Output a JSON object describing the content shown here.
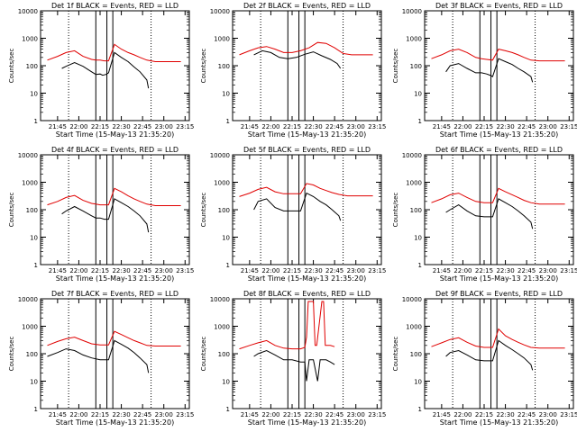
{
  "colors": {
    "events": "#000000",
    "lld": "#e00000",
    "frame": "#000000",
    "background": "#ffffff"
  },
  "chart_data": [
    {
      "type": "line",
      "detector": "1f",
      "title": "Det 1f BLACK = Events, RED = LLD",
      "xlabel": "Start Time (15-May-13 21:35:20)",
      "ylabel": "Counts/sec",
      "xticks": [
        "21:45",
        "22:00",
        "22:15",
        "22:30",
        "22:45",
        "23:00",
        "23:15"
      ],
      "yticks": [
        "1",
        "10",
        "100",
        "1000",
        "10000"
      ],
      "yscale": "log",
      "ylim": [
        1,
        10000
      ],
      "series": [
        {
          "color": "#000000",
          "x": [
            21.8,
            21.85,
            21.95,
            22.05,
            22.15,
            22.2,
            22.25,
            22.28,
            22.32,
            22.35,
            22.42,
            22.5,
            22.58,
            22.65,
            22.72,
            22.8,
            22.82
          ],
          "y": [
            80,
            95,
            130,
            95,
            60,
            48,
            50,
            45,
            48,
            55,
            300,
            200,
            140,
            90,
            60,
            30,
            15
          ]
        },
        {
          "color": "#e00000",
          "x": [
            21.63,
            21.75,
            21.85,
            21.95,
            22.05,
            22.15,
            22.2,
            22.25,
            22.3,
            22.35,
            22.42,
            22.5,
            22.58,
            22.65,
            22.72,
            22.8,
            22.9,
            23.0,
            23.1,
            23.2
          ],
          "y": [
            160,
            220,
            300,
            350,
            220,
            170,
            160,
            160,
            150,
            150,
            600,
            400,
            300,
            250,
            200,
            160,
            140,
            140,
            140,
            140
          ]
        }
      ]
    },
    {
      "type": "line",
      "detector": "2f",
      "title": "Det 2f BLACK = Events, RED = LLD",
      "xlabel": "Start Time (15-May-13 21:35:20)",
      "ylabel": "Counts/sec",
      "xticks": [
        "21:45",
        "22:00",
        "22:15",
        "22:30",
        "22:45",
        "23:00",
        "23:15"
      ],
      "yticks": [
        "1",
        "10",
        "100",
        "1000",
        "10000"
      ],
      "yscale": "log",
      "ylim": [
        1,
        10000
      ],
      "series": [
        {
          "color": "#000000",
          "x": [
            21.8,
            21.9,
            22.0,
            22.1,
            22.2,
            22.3,
            22.4,
            22.5,
            22.6,
            22.7,
            22.78,
            22.82
          ],
          "y": [
            250,
            350,
            300,
            200,
            180,
            200,
            260,
            320,
            230,
            170,
            120,
            80
          ]
        },
        {
          "color": "#e00000",
          "x": [
            21.63,
            21.75,
            21.85,
            21.95,
            22.05,
            22.15,
            22.25,
            22.35,
            22.45,
            22.55,
            22.65,
            22.75,
            22.85,
            22.95,
            23.05,
            23.2
          ],
          "y": [
            250,
            350,
            450,
            500,
            400,
            300,
            300,
            350,
            450,
            700,
            650,
            450,
            280,
            250,
            250,
            250
          ]
        }
      ]
    },
    {
      "type": "line",
      "detector": "3f",
      "title": "Det 3f BLACK = Events, RED = LLD",
      "xlabel": "Start Time (15-May-13 21:35:20)",
      "ylabel": "Counts/sec",
      "xticks": [
        "21:45",
        "22:00",
        "22:15",
        "22:30",
        "22:45",
        "23:00",
        "23:15"
      ],
      "yticks": [
        "1",
        "10",
        "100",
        "1000",
        "10000"
      ],
      "yscale": "log",
      "ylim": [
        1,
        10000
      ],
      "series": [
        {
          "color": "#000000",
          "x": [
            21.8,
            21.85,
            21.95,
            22.05,
            22.15,
            22.22,
            22.28,
            22.32,
            22.35,
            22.42,
            22.5,
            22.58,
            22.65,
            22.72,
            22.8,
            22.82
          ],
          "y": [
            60,
            100,
            120,
            80,
            55,
            55,
            50,
            45,
            40,
            180,
            140,
            110,
            80,
            60,
            40,
            25
          ]
        },
        {
          "color": "#e00000",
          "x": [
            21.63,
            21.75,
            21.85,
            21.95,
            22.05,
            22.15,
            22.22,
            22.28,
            22.35,
            22.42,
            22.5,
            22.58,
            22.65,
            22.72,
            22.8,
            22.9,
            23.0,
            23.1,
            23.2
          ],
          "y": [
            180,
            250,
            350,
            400,
            300,
            200,
            180,
            170,
            160,
            400,
            350,
            300,
            250,
            200,
            160,
            150,
            150,
            150,
            150
          ]
        }
      ]
    },
    {
      "type": "line",
      "detector": "4f",
      "title": "Det 4f BLACK = Events, RED = LLD",
      "xlabel": "Start Time (15-May-13 21:35:20)",
      "ylabel": "Counts/sec",
      "xticks": [
        "21:45",
        "22:00",
        "22:15",
        "22:30",
        "22:45",
        "23:00",
        "23:15"
      ],
      "yticks": [
        "1",
        "10",
        "100",
        "1000",
        "10000"
      ],
      "yscale": "log",
      "ylim": [
        1,
        10000
      ],
      "series": [
        {
          "color": "#000000",
          "x": [
            21.8,
            21.85,
            21.95,
            22.05,
            22.15,
            22.2,
            22.25,
            22.3,
            22.35,
            22.42,
            22.5,
            22.58,
            22.65,
            22.72,
            22.8,
            22.82
          ],
          "y": [
            70,
            90,
            130,
            90,
            60,
            50,
            50,
            45,
            45,
            250,
            180,
            130,
            90,
            60,
            30,
            15
          ]
        },
        {
          "color": "#e00000",
          "x": [
            21.63,
            21.75,
            21.85,
            21.95,
            22.05,
            22.15,
            22.2,
            22.25,
            22.3,
            22.35,
            22.42,
            22.5,
            22.58,
            22.65,
            22.72,
            22.8,
            22.9,
            23.0,
            23.1,
            23.2
          ],
          "y": [
            150,
            200,
            280,
            330,
            220,
            170,
            160,
            150,
            150,
            150,
            600,
            450,
            320,
            250,
            200,
            160,
            140,
            140,
            140,
            140
          ]
        }
      ]
    },
    {
      "type": "line",
      "detector": "5f",
      "title": "Det 5f BLACK = Events, RED = LLD",
      "xlabel": "Start Time (15-May-13 21:35:20)",
      "ylabel": "Counts/sec",
      "xticks": [
        "21:45",
        "22:00",
        "22:15",
        "22:30",
        "22:45",
        "23:00",
        "23:15"
      ],
      "yticks": [
        "1",
        "10",
        "100",
        "1000",
        "10000"
      ],
      "yscale": "log",
      "ylim": [
        1,
        10000
      ],
      "series": [
        {
          "color": "#000000",
          "x": [
            21.8,
            21.85,
            21.95,
            22.05,
            22.15,
            22.25,
            22.35,
            22.42,
            22.5,
            22.58,
            22.65,
            22.72,
            22.8,
            22.82
          ],
          "y": [
            100,
            200,
            250,
            120,
            90,
            90,
            90,
            400,
            300,
            200,
            150,
            100,
            60,
            40
          ]
        },
        {
          "color": "#e00000",
          "x": [
            21.63,
            21.75,
            21.85,
            21.95,
            22.05,
            22.15,
            22.25,
            22.35,
            22.42,
            22.5,
            22.58,
            22.65,
            22.72,
            22.8,
            22.9,
            23.0,
            23.1,
            23.2
          ],
          "y": [
            300,
            400,
            550,
            650,
            450,
            380,
            380,
            380,
            900,
            800,
            600,
            500,
            420,
            360,
            320,
            320,
            320,
            320
          ]
        }
      ]
    },
    {
      "type": "line",
      "detector": "6f",
      "title": "Det 6f BLACK = Events, RED = LLD",
      "xlabel": "Start Time (15-May-13 21:35:20)",
      "ylabel": "Counts/sec",
      "xticks": [
        "21:45",
        "22:00",
        "22:15",
        "22:30",
        "22:45",
        "23:00",
        "23:15"
      ],
      "yticks": [
        "1",
        "10",
        "100",
        "1000",
        "10000"
      ],
      "yscale": "log",
      "ylim": [
        1,
        10000
      ],
      "series": [
        {
          "color": "#000000",
          "x": [
            21.8,
            21.85,
            21.95,
            22.05,
            22.15,
            22.25,
            22.35,
            22.42,
            22.5,
            22.58,
            22.65,
            22.72,
            22.8,
            22.82
          ],
          "y": [
            80,
            100,
            150,
            90,
            60,
            55,
            55,
            250,
            180,
            130,
            90,
            60,
            35,
            20
          ]
        },
        {
          "color": "#e00000",
          "x": [
            21.63,
            21.75,
            21.85,
            21.95,
            22.05,
            22.15,
            22.25,
            22.35,
            22.42,
            22.5,
            22.58,
            22.65,
            22.72,
            22.8,
            22.9,
            23.0,
            23.1,
            23.2
          ],
          "y": [
            180,
            250,
            350,
            400,
            280,
            200,
            180,
            180,
            600,
            450,
            350,
            280,
            220,
            180,
            160,
            160,
            160,
            160
          ]
        }
      ]
    },
    {
      "type": "line",
      "detector": "7f",
      "title": "Det 7f BLACK = Events, RED = LLD",
      "xlabel": "Start Time (15-May-13 21:35:20)",
      "ylabel": "Counts/sec",
      "xticks": [
        "21:45",
        "22:00",
        "22:15",
        "22:30",
        "22:45",
        "23:00",
        "23:15"
      ],
      "yticks": [
        "1",
        "10",
        "100",
        "1000",
        "10000"
      ],
      "yscale": "log",
      "ylim": [
        1,
        10000
      ],
      "series": [
        {
          "color": "#000000",
          "x": [
            21.63,
            21.75,
            21.85,
            21.95,
            22.05,
            22.15,
            22.25,
            22.35,
            22.42,
            22.5,
            22.58,
            22.65,
            22.72,
            22.8,
            22.82
          ],
          "y": [
            80,
            110,
            150,
            130,
            90,
            70,
            60,
            60,
            300,
            220,
            160,
            110,
            70,
            40,
            20
          ]
        },
        {
          "color": "#e00000",
          "x": [
            21.63,
            21.75,
            21.85,
            21.95,
            22.05,
            22.15,
            22.25,
            22.35,
            22.42,
            22.5,
            22.58,
            22.65,
            22.72,
            22.8,
            22.9,
            23.0,
            23.1,
            23.2
          ],
          "y": [
            200,
            280,
            350,
            400,
            300,
            230,
            210,
            210,
            650,
            500,
            380,
            300,
            250,
            200,
            190,
            190,
            190,
            190
          ]
        }
      ]
    },
    {
      "type": "line",
      "detector": "8f",
      "title": "Det 8f BLACK = Events, RED = LLD",
      "xlabel": "Start Time (15-May-13 21:35:20)",
      "ylabel": "Counts/sec",
      "xticks": [
        "21:45",
        "22:00",
        "22:15",
        "22:30",
        "22:45",
        "23:00",
        "23:15"
      ],
      "yticks": [
        "1",
        "10",
        "100",
        "1000",
        "10000"
      ],
      "yscale": "log",
      "ylim": [
        1,
        10000
      ],
      "series": [
        {
          "color": "#000000",
          "x": [
            21.8,
            21.85,
            21.95,
            22.05,
            22.15,
            22.25,
            22.35,
            22.4,
            22.42,
            22.45,
            22.5,
            22.55,
            22.58,
            22.62,
            22.65,
            22.7,
            22.75
          ],
          "y": [
            80,
            100,
            130,
            90,
            60,
            60,
            50,
            50,
            10,
            60,
            60,
            10,
            60,
            60,
            60,
            50,
            40
          ]
        },
        {
          "color": "#e00000",
          "x": [
            21.63,
            21.75,
            21.85,
            21.95,
            22.05,
            22.15,
            22.25,
            22.35,
            22.4,
            22.42,
            22.44,
            22.5,
            22.52,
            22.54,
            22.6,
            22.62,
            22.64,
            22.7,
            22.75
          ],
          "y": [
            150,
            200,
            250,
            300,
            200,
            160,
            150,
            150,
            170,
            400,
            8000,
            8000,
            200,
            200,
            8000,
            8000,
            200,
            200,
            180
          ]
        }
      ]
    },
    {
      "type": "line",
      "detector": "9f",
      "title": "Det 9f BLACK = Events, RED = LLD",
      "xlabel": "Start Time (15-May-13 21:35:20)",
      "ylabel": "Counts/sec",
      "xticks": [
        "21:45",
        "22:00",
        "22:15",
        "22:30",
        "22:45",
        "23:00",
        "23:15"
      ],
      "yticks": [
        "1",
        "10",
        "100",
        "1000",
        "10000"
      ],
      "yscale": "log",
      "ylim": [
        1,
        10000
      ],
      "series": [
        {
          "color": "#000000",
          "x": [
            21.8,
            21.85,
            21.95,
            22.05,
            22.15,
            22.25,
            22.35,
            22.42,
            22.5,
            22.58,
            22.65,
            22.72,
            22.8,
            22.82
          ],
          "y": [
            80,
            110,
            130,
            90,
            60,
            55,
            55,
            300,
            200,
            140,
            100,
            70,
            40,
            25
          ]
        },
        {
          "color": "#e00000",
          "x": [
            21.63,
            21.75,
            21.85,
            21.95,
            22.05,
            22.15,
            22.25,
            22.35,
            22.42,
            22.5,
            22.58,
            22.65,
            22.72,
            22.8,
            22.9,
            23.0,
            23.1,
            23.2
          ],
          "y": [
            180,
            250,
            330,
            380,
            260,
            190,
            170,
            170,
            800,
            450,
            330,
            260,
            210,
            170,
            160,
            160,
            160,
            160
          ]
        }
      ]
    }
  ],
  "markers": {
    "dotted_times": [
      21.88,
      22.85
    ],
    "solid_times": [
      22.2,
      22.33,
      22.4
    ]
  }
}
